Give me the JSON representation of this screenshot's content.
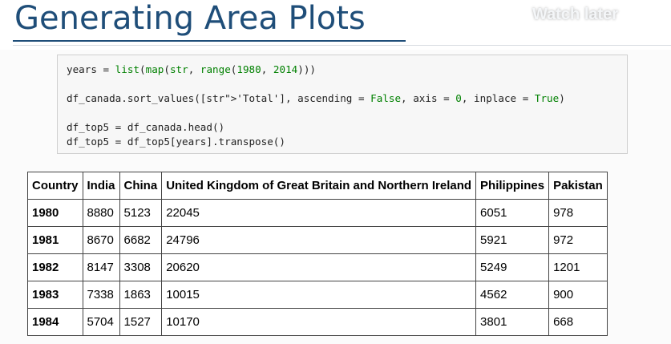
{
  "slide": {
    "title": "Generating Area Plots",
    "watch_later": "Watch later"
  },
  "code": {
    "lines": [
      "years = list(map(str, range(1980, 2014)))",
      "df_canada.sort_values(['Total'], ascending = False, axis = 0, inplace = True)",
      "df_top5 = df_canada.head()",
      "df_top5 = df_top5[years].transpose()"
    ]
  },
  "table": {
    "headers": [
      "Country",
      "India",
      "China",
      "United Kingdom of Great Britain and Northern Ireland",
      "Philippines",
      "Pakistan"
    ],
    "rows": [
      [
        "1980",
        "8880",
        "5123",
        "22045",
        "6051",
        "978"
      ],
      [
        "1981",
        "8670",
        "6682",
        "24796",
        "5921",
        "972"
      ],
      [
        "1982",
        "8147",
        "3308",
        "20620",
        "5249",
        "1201"
      ],
      [
        "1983",
        "7338",
        "1863",
        "10015",
        "4562",
        "900"
      ],
      [
        "1984",
        "5704",
        "1527",
        "10170",
        "3801",
        "668"
      ]
    ]
  },
  "colors": {
    "title": "#1f4e79",
    "code_background": "#f7f7f7",
    "code_keyword": "#008000",
    "code_string": "#ba2121"
  }
}
